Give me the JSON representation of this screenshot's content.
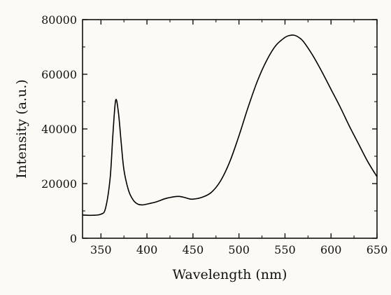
{
  "chart_data": {
    "type": "line",
    "title": "",
    "xlabel": "Wavelength (nm)",
    "ylabel": "Intensity (a.u.)",
    "xlim": [
      330,
      650
    ],
    "ylim": [
      0,
      80000
    ],
    "x_ticks": [
      350,
      400,
      450,
      500,
      550,
      600,
      650
    ],
    "y_ticks": [
      0,
      20000,
      40000,
      60000,
      80000
    ],
    "grid": false,
    "legend": "none",
    "line_color": "#000000",
    "series": [
      {
        "x": [
          330,
          340,
          350,
          355,
          360,
          363,
          366,
          369,
          372,
          375,
          380,
          385,
          390,
          395,
          400,
          410,
          420,
          430,
          435,
          440,
          445,
          450,
          460,
          470,
          480,
          490,
          500,
          510,
          520,
          530,
          540,
          550,
          555,
          560,
          565,
          570,
          580,
          590,
          600,
          610,
          620,
          630,
          640,
          650
        ],
        "y": [
          8500,
          8400,
          8800,
          11000,
          22000,
          38000,
          50500,
          46000,
          35000,
          25000,
          17500,
          14000,
          12500,
          12200,
          12500,
          13300,
          14500,
          15200,
          15300,
          15000,
          14500,
          14300,
          15000,
          16800,
          21000,
          28000,
          37500,
          48000,
          57500,
          65000,
          70500,
          73500,
          74200,
          74300,
          73500,
          72000,
          67000,
          61000,
          54500,
          48000,
          41000,
          34500,
          28000,
          22500
        ]
      }
    ]
  }
}
